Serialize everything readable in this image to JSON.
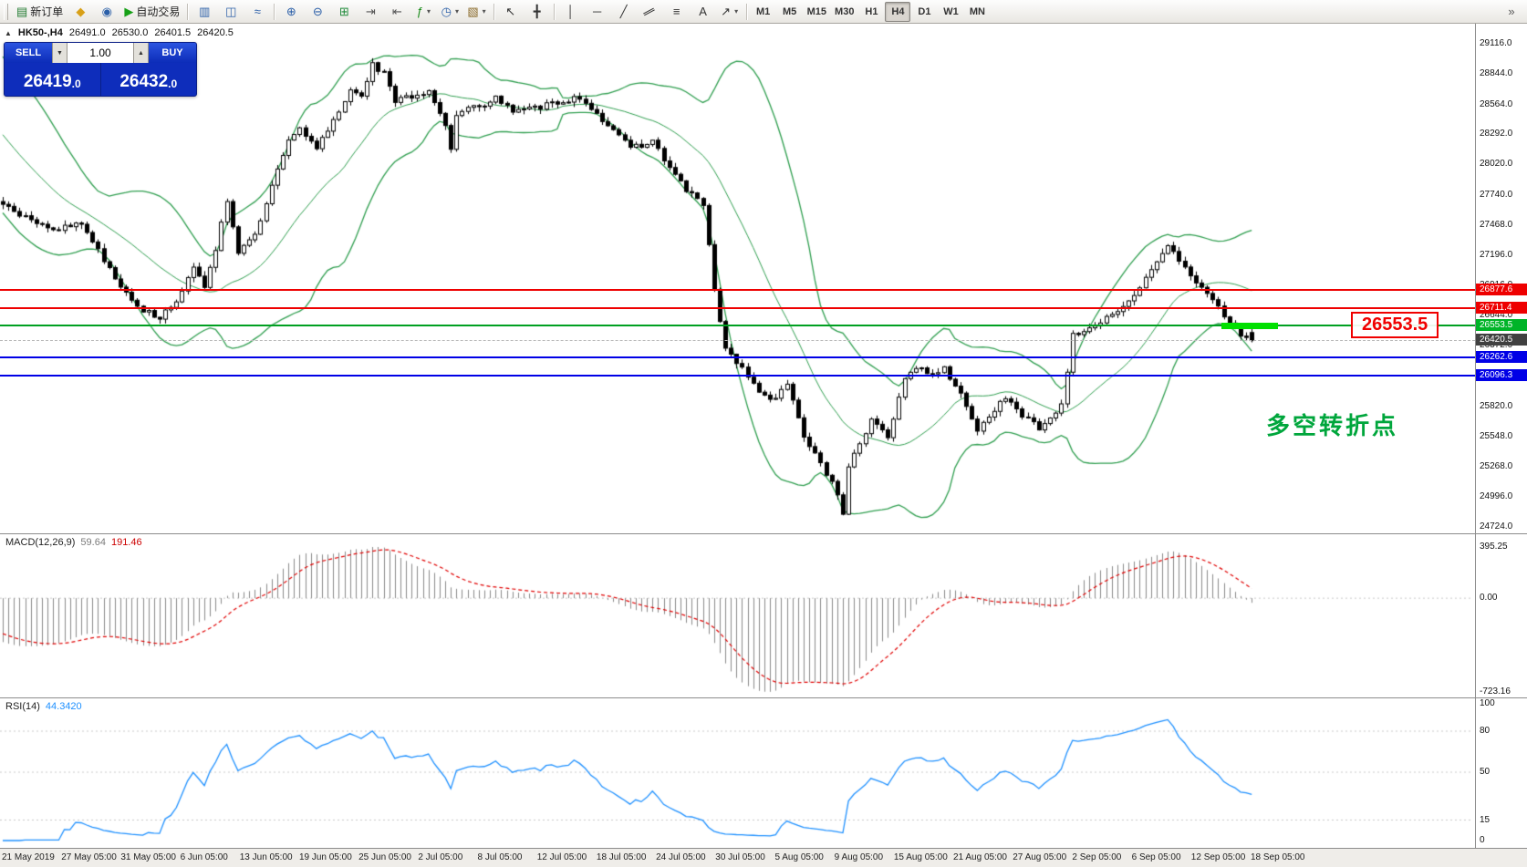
{
  "toolbar": {
    "items": [
      {
        "type": "grip",
        "name": "toolbar-grip"
      },
      {
        "name": "new-order-button",
        "glyph": "▤",
        "glyph_color": "#1f7a2e",
        "label": "新订单"
      },
      {
        "name": "metaeditor-button",
        "glyph": "◆",
        "glyph_color": "#d8a018"
      },
      {
        "name": "market-button",
        "glyph": "◉",
        "glyph_color": "#2b5fa8"
      },
      {
        "name": "autotrading-button",
        "glyph": "▶",
        "glyph_color": "#16a016",
        "label": "自动交易"
      },
      {
        "type": "sep"
      },
      {
        "name": "chart-bars-button",
        "glyph": "▥",
        "glyph_color": "#2b5fa8"
      },
      {
        "name": "chart-candles-button",
        "glyph": "◫",
        "glyph_color": "#2b5fa8"
      },
      {
        "name": "chart-line-button",
        "glyph": "≈",
        "glyph_color": "#2b5fa8"
      },
      {
        "type": "sep"
      },
      {
        "name": "zoom-in-button",
        "glyph": "⊕",
        "glyph_color": "#2b5fa8"
      },
      {
        "name": "zoom-out-button",
        "glyph": "⊖",
        "glyph_color": "#2b5fa8"
      },
      {
        "name": "tile-windows-button",
        "glyph": "⊞",
        "glyph_color": "#1f8a3a"
      },
      {
        "name": "auto-scroll-button",
        "glyph": "⇥",
        "glyph_color": "#555555"
      },
      {
        "name": "chart-shift-button",
        "glyph": "⇤",
        "glyph_color": "#555555"
      },
      {
        "name": "indicators-button",
        "glyph": "ƒ",
        "glyph_color": "#168a16",
        "dropdown": true
      },
      {
        "name": "periods-dropdown-button",
        "glyph": "◷",
        "glyph_color": "#2b5fa8",
        "dropdown": true
      },
      {
        "name": "templates-button",
        "glyph": "▧",
        "glyph_color": "#8a6a2a",
        "dropdown": true
      },
      {
        "type": "sep"
      },
      {
        "name": "cursor-button",
        "glyph": "↖",
        "glyph_color": "#333333"
      },
      {
        "name": "crosshair-button",
        "glyph": "╋",
        "glyph_color": "#333333"
      },
      {
        "type": "sep"
      },
      {
        "name": "vertical-line-button",
        "glyph": "│",
        "glyph_color": "#333333"
      },
      {
        "name": "horizontal-line-button",
        "glyph": "─",
        "glyph_color": "#333333"
      },
      {
        "name": "trendline-button",
        "glyph": "╱",
        "glyph_color": "#333333"
      },
      {
        "name": "channel-button",
        "glyph": "∥",
        "glyph_color": "#333333",
        "rot": true
      },
      {
        "name": "fibonacci-button",
        "glyph": "≡",
        "glyph_color": "#333333"
      },
      {
        "name": "text-button",
        "glyph": "A",
        "glyph_color": "#333333"
      },
      {
        "name": "arrows-button",
        "glyph": "↗",
        "glyph_color": "#333333",
        "dropdown": true
      },
      {
        "type": "sep"
      },
      {
        "name": "period-m1-button",
        "text": "M1"
      },
      {
        "name": "period-m5-button",
        "text": "M5"
      },
      {
        "name": "period-m15-button",
        "text": "M15"
      },
      {
        "name": "period-m30-button",
        "text": "M30"
      },
      {
        "name": "period-h1-button",
        "text": "H1"
      },
      {
        "name": "period-h4-button",
        "text": "H4",
        "pressed": true
      },
      {
        "name": "period-d1-button",
        "text": "D1"
      },
      {
        "name": "period-w1-button",
        "text": "W1"
      },
      {
        "name": "period-mn-button",
        "text": "MN"
      },
      {
        "name": "toolbar-overflow-button",
        "glyph": "»",
        "glyph_color": "#555555",
        "right": true
      }
    ]
  },
  "chart_header": {
    "collapse_icon": "▲",
    "symbol": "HK50-,H4",
    "open": "26491.0",
    "high": "26530.0",
    "low": "26401.5",
    "close": "26420.5"
  },
  "one_click": {
    "sell_label": "SELL",
    "buy_label": "BUY",
    "volume": "1.00",
    "volume_down_glyph": "▼",
    "volume_up_glyph": "▲",
    "sell_price": "26419",
    "sell_price_dec": ".0",
    "buy_price": "26432",
    "buy_price_dec": ".0"
  },
  "annotations": {
    "level_label": "26553.5",
    "note_cn": "多空转折点"
  },
  "panes": {
    "macd": {
      "title": "MACD(12,26,9)",
      "value1": "59.64",
      "value2": "191.46",
      "scale_values": [
        395.25,
        0,
        -723.16
      ],
      "scale_labels": [
        "395.25",
        "0.00",
        "-723.16"
      ]
    },
    "rsi": {
      "title": "RSI(14)",
      "value": "44.3420",
      "scale_values": [
        100,
        80,
        50,
        15,
        0
      ],
      "scale_labels": [
        "100",
        "80",
        "50",
        "15",
        "0"
      ],
      "level_lines": [
        80,
        50,
        15
      ]
    }
  },
  "price_scale": {
    "grid_ticks": [
      29116.0,
      28844.0,
      28564.0,
      28292.0,
      28020.0,
      27740.0,
      27468.0,
      27196.0,
      26916.0,
      26644.0,
      26372.0,
      26100.0,
      25820.0,
      25548.0,
      25268.0,
      24996.0,
      24724.0
    ]
  },
  "levels": [
    {
      "name": "resistance-line-upper",
      "value": 26877.6,
      "label": "26877.6",
      "color": "#ee0000",
      "style": "solid",
      "badge_bg": "#ee0000"
    },
    {
      "name": "resistance-line-lower",
      "value": 26711.4,
      "label": "26711.4",
      "color": "#ee0000",
      "style": "solid",
      "badge_bg": "#ee0000"
    },
    {
      "name": "pivot-line-green",
      "value": 26553.5,
      "label": "26553.5",
      "color": "#00a021",
      "style": "solid",
      "badge_bg": "#00b428"
    },
    {
      "name": "current-price-line",
      "value": 26420.5,
      "label": "26420.5",
      "color": "#b8b8b8",
      "style": "dashed",
      "badge_bg": "#404040"
    },
    {
      "name": "support-line-upper",
      "value": 26262.6,
      "label": "26262.6",
      "color": "#0000e6",
      "style": "solid",
      "badge_bg": "#0000e6"
    },
    {
      "name": "support-line-lower",
      "value": 26096.3,
      "label": "26096.3",
      "color": "#0000e6",
      "style": "solid",
      "badge_bg": "#0000e6"
    }
  ],
  "time_axis": {
    "labels": [
      "21 May 2019",
      "27 May 05:00",
      "31 May 05:00",
      "6 Jun 05:00",
      "13 Jun 05:00",
      "19 Jun 05:00",
      "25 Jun 05:00",
      "2 Jul 05:00",
      "8 Jul 05:00",
      "12 Jul 05:00",
      "18 Jul 05:00",
      "24 Jul 05:00",
      "30 Jul 05:00",
      "5 Aug 05:00",
      "9 Aug 05:00",
      "15 Aug 05:00",
      "21 Aug 05:00",
      "27 Aug 05:00",
      "2 Sep 05:00",
      "6 Sep 05:00",
      "12 Sep 05:00",
      "18 Sep 05:00"
    ]
  },
  "chart_data": {
    "type": "candlestick",
    "symbol": "HK50-",
    "timeframe": "H4",
    "current_ohlc": {
      "open": 26491.0,
      "high": 26530.0,
      "low": 26401.5,
      "close": 26420.5
    },
    "bar_count": 224,
    "close_anchors": [
      [
        0,
        27660
      ],
      [
        4,
        27540
      ],
      [
        10,
        27430
      ],
      [
        14,
        27490
      ],
      [
        18,
        27160
      ],
      [
        21,
        26920
      ],
      [
        25,
        26690
      ],
      [
        28,
        26630
      ],
      [
        31,
        26790
      ],
      [
        34,
        27060
      ],
      [
        36,
        26920
      ],
      [
        38,
        27260
      ],
      [
        40,
        27700
      ],
      [
        42,
        27230
      ],
      [
        45,
        27360
      ],
      [
        48,
        27820
      ],
      [
        51,
        28230
      ],
      [
        53,
        28330
      ],
      [
        56,
        28160
      ],
      [
        59,
        28420
      ],
      [
        62,
        28690
      ],
      [
        64,
        28660
      ],
      [
        66,
        28930
      ],
      [
        68,
        28840
      ],
      [
        70,
        28590
      ],
      [
        73,
        28640
      ],
      [
        76,
        28690
      ],
      [
        79,
        28390
      ],
      [
        80,
        28150
      ],
      [
        81,
        28450
      ],
      [
        82,
        28510
      ],
      [
        85,
        28540
      ],
      [
        88,
        28640
      ],
      [
        91,
        28490
      ],
      [
        95,
        28530
      ],
      [
        99,
        28590
      ],
      [
        103,
        28630
      ],
      [
        106,
        28490
      ],
      [
        109,
        28310
      ],
      [
        112,
        28170
      ],
      [
        116,
        28230
      ],
      [
        119,
        27990
      ],
      [
        122,
        27790
      ],
      [
        125,
        27650
      ],
      [
        127,
        26880
      ],
      [
        129,
        26340
      ],
      [
        132,
        26160
      ],
      [
        135,
        25960
      ],
      [
        137,
        25860
      ],
      [
        140,
        26010
      ],
      [
        143,
        25560
      ],
      [
        146,
        25300
      ],
      [
        149,
        25040
      ],
      [
        150,
        24820
      ],
      [
        151,
        25250
      ],
      [
        152,
        25390
      ],
      [
        155,
        25690
      ],
      [
        158,
        25530
      ],
      [
        161,
        26090
      ],
      [
        164,
        26190
      ],
      [
        166,
        26090
      ],
      [
        168,
        26160
      ],
      [
        171,
        25930
      ],
      [
        174,
        25610
      ],
      [
        177,
        25790
      ],
      [
        179,
        25890
      ],
      [
        182,
        25730
      ],
      [
        185,
        25630
      ],
      [
        187,
        25710
      ],
      [
        189,
        25830
      ],
      [
        191,
        26480
      ],
      [
        194,
        26530
      ],
      [
        197,
        26630
      ],
      [
        200,
        26730
      ],
      [
        203,
        26910
      ],
      [
        206,
        27110
      ],
      [
        208,
        27260
      ],
      [
        210,
        27160
      ],
      [
        213,
        26960
      ],
      [
        216,
        26810
      ],
      [
        218,
        26610
      ],
      [
        220,
        26510
      ],
      [
        223,
        26420.5
      ]
    ],
    "indicators": {
      "bollinger_bands": {
        "period": 20,
        "deviation": 2,
        "color": "#2f9e4f"
      },
      "macd": {
        "fast_ema": 12,
        "slow_ema": 26,
        "signal": 9,
        "current_histogram": 59.64,
        "current_signal": 191.46,
        "scale_max": 395.25,
        "scale_min": -723.16
      },
      "rsi": {
        "period": 14,
        "current": 44.342
      }
    },
    "horizontal_levels": [
      26877.6,
      26711.4,
      26553.5,
      26262.6,
      26096.3
    ],
    "y_axis_ticks": [
      29116.0,
      28844.0,
      28564.0,
      28292.0,
      28020.0,
      27740.0,
      27468.0,
      27196.0,
      26916.0,
      26644.0,
      26372.0,
      26100.0,
      25820.0,
      25548.0,
      25268.0,
      24996.0,
      24724.0
    ],
    "x_axis_labels": [
      "21 May 2019",
      "27 May 05:00",
      "31 May 05:00",
      "6 Jun 05:00",
      "13 Jun 05:00",
      "19 Jun 05:00",
      "25 Jun 05:00",
      "2 Jul 05:00",
      "8 Jul 05:00",
      "12 Jul 05:00",
      "18 Jul 05:00",
      "24 Jul 05:00",
      "30 Jul 05:00",
      "5 Aug 05:00",
      "9 Aug 05:00",
      "15 Aug 05:00",
      "21 Aug 05:00",
      "27 Aug 05:00",
      "2 Sep 05:00",
      "6 Sep 05:00",
      "12 Sep 05:00",
      "18 Sep 05:00"
    ]
  }
}
